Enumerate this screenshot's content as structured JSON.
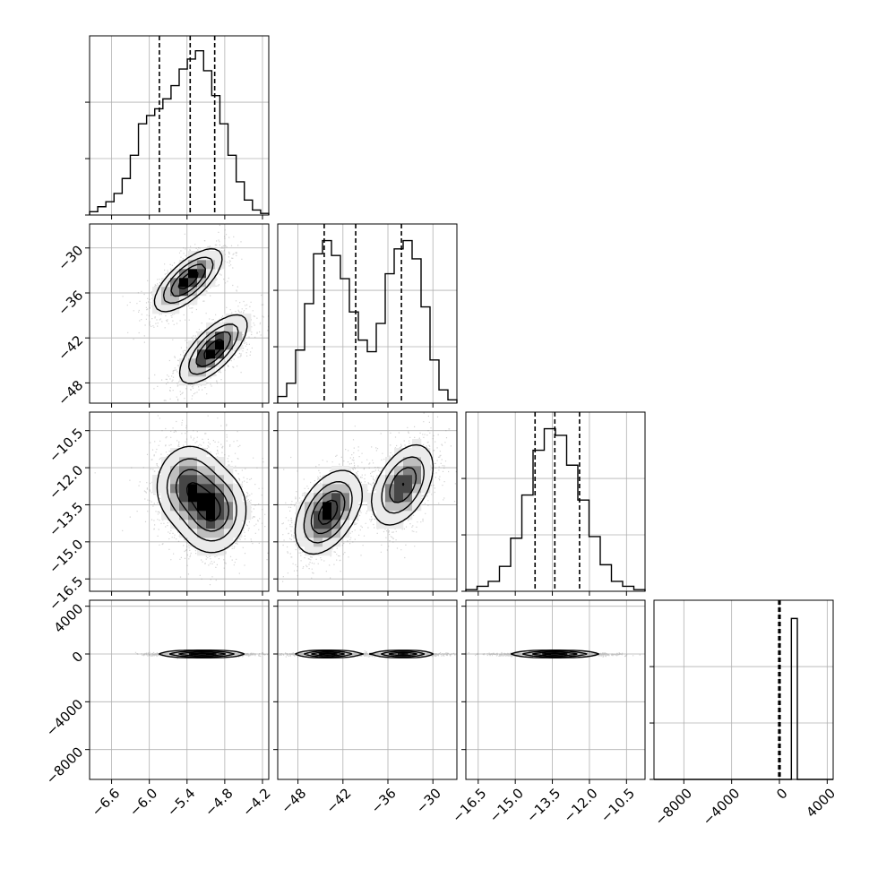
{
  "chart_data": {
    "type": "corner",
    "parameters": 4,
    "axes": [
      {
        "ticks": [
          "−6.6",
          "−6.0",
          "−5.4",
          "−4.8",
          "−4.2"
        ],
        "tick_values": [
          -6.6,
          -6.0,
          -5.4,
          -4.8,
          -4.2
        ],
        "range": [
          -6.95,
          -4.1
        ],
        "quantiles": [
          -5.84,
          -5.35,
          -4.96
        ]
      },
      {
        "ticks": [
          "−48",
          "−42",
          "−36",
          "−30"
        ],
        "tick_values": [
          -48,
          -42,
          -36,
          -30
        ],
        "range": [
          -50.7,
          -26.8
        ],
        "quantiles": [
          -44.5,
          -40.3,
          -34.2
        ]
      },
      {
        "ticks": [
          "−16.5",
          "−15.0",
          "−13.5",
          "−12.0",
          "−10.5"
        ],
        "tick_values": [
          -16.5,
          -15.0,
          -13.5,
          -12.0,
          -10.5
        ],
        "range": [
          -17.0,
          -9.75
        ],
        "quantiles": [
          -14.2,
          -13.4,
          -12.4
        ]
      },
      {
        "ticks": [
          "−8000",
          "−4000",
          "0",
          "4000"
        ],
        "tick_values": [
          -8000,
          -4000,
          0,
          4000
        ],
        "range": [
          -10500,
          4500
        ],
        "quantiles": [
          -60,
          0,
          60
        ]
      }
    ],
    "marginals": [
      {
        "counts": [
          0.02,
          0.05,
          0.08,
          0.13,
          0.22,
          0.36,
          0.55,
          0.6,
          0.64,
          0.7,
          0.78,
          0.88,
          0.94,
          0.99,
          0.87,
          0.72,
          0.55,
          0.36,
          0.2,
          0.09,
          0.03,
          0.01
        ]
      },
      {
        "counts": [
          0.04,
          0.12,
          0.32,
          0.6,
          0.9,
          0.98,
          0.89,
          0.75,
          0.55,
          0.38,
          0.31,
          0.48,
          0.78,
          0.93,
          0.98,
          0.87,
          0.58,
          0.26,
          0.08,
          0.02
        ]
      },
      {
        "counts": [
          0.01,
          0.03,
          0.06,
          0.15,
          0.32,
          0.58,
          0.85,
          0.98,
          0.94,
          0.76,
          0.55,
          0.33,
          0.16,
          0.06,
          0.03,
          0.01
        ]
      },
      {
        "counts": [
          0,
          0,
          0,
          0,
          0,
          0,
          0,
          0,
          0,
          0,
          0,
          0,
          0,
          0,
          0,
          0,
          0,
          0,
          0,
          0,
          0,
          0,
          0,
          0,
          0,
          0,
          0,
          0,
          0,
          0,
          0,
          0,
          0,
          0,
          0,
          0,
          0,
          0,
          0,
          0,
          0,
          0,
          0,
          0,
          0,
          0,
          0.97,
          0.97,
          0,
          0,
          0,
          0,
          0,
          0,
          0,
          0,
          0,
          0,
          0,
          0
        ]
      }
    ],
    "joint_modes": [
      {
        "pair": [
          0,
          1
        ],
        "modes": [
          {
            "center": [
              -5.38,
              -34.3
            ],
            "sd": [
              0.27,
              2.1
            ],
            "rho": 0.7,
            "weight": 1.0
          },
          {
            "center": [
              -4.98,
              -43.5
            ],
            "sd": [
              0.27,
              2.3
            ],
            "rho": 0.7,
            "weight": 1.0
          }
        ]
      },
      {
        "pair": [
          0,
          2
        ],
        "modes": [
          {
            "center": [
              -5.38,
              -12.7
            ],
            "sd": [
              0.27,
              0.85
            ],
            "rho": 0.05,
            "weight": 0.85
          },
          {
            "center": [
              -4.98,
              -13.8
            ],
            "sd": [
              0.27,
              0.85
            ],
            "rho": 0.05,
            "weight": 1.0
          }
        ]
      },
      {
        "pair": [
          1,
          2
        ],
        "modes": [
          {
            "center": [
              -44.0,
              -13.8
            ],
            "sd": [
              2.2,
              0.85
            ],
            "rho": 0.45,
            "weight": 1.0
          },
          {
            "center": [
              -34.0,
              -12.7
            ],
            "sd": [
              2.1,
              0.85
            ],
            "rho": 0.45,
            "weight": 0.85
          }
        ]
      },
      {
        "pair": [
          0,
          3
        ],
        "modes": [
          {
            "center": [
              -5.38,
              0
            ],
            "sd": [
              0.27,
              60
            ],
            "rho": 0,
            "weight": 0.85
          },
          {
            "center": [
              -4.98,
              0
            ],
            "sd": [
              0.27,
              60
            ],
            "rho": 0,
            "weight": 1.0
          }
        ]
      },
      {
        "pair": [
          1,
          3
        ],
        "modes": [
          {
            "center": [
              -44.0,
              0
            ],
            "sd": [
              2.2,
              60
            ],
            "rho": 0,
            "weight": 1.0
          },
          {
            "center": [
              -34.0,
              0
            ],
            "sd": [
              2.1,
              60
            ],
            "rho": 0,
            "weight": 0.9
          }
        ]
      },
      {
        "pair": [
          2,
          3
        ],
        "modes": [
          {
            "center": [
              -13.4,
              0
            ],
            "sd": [
              0.9,
              60
            ],
            "rho": 0,
            "weight": 1.0
          }
        ]
      }
    ],
    "grid": true,
    "quantile_lines": "dashed"
  },
  "colors": {
    "axis": "#000000",
    "grid": "#b0b0b0",
    "points": "#808080",
    "density_max": "#000000"
  }
}
